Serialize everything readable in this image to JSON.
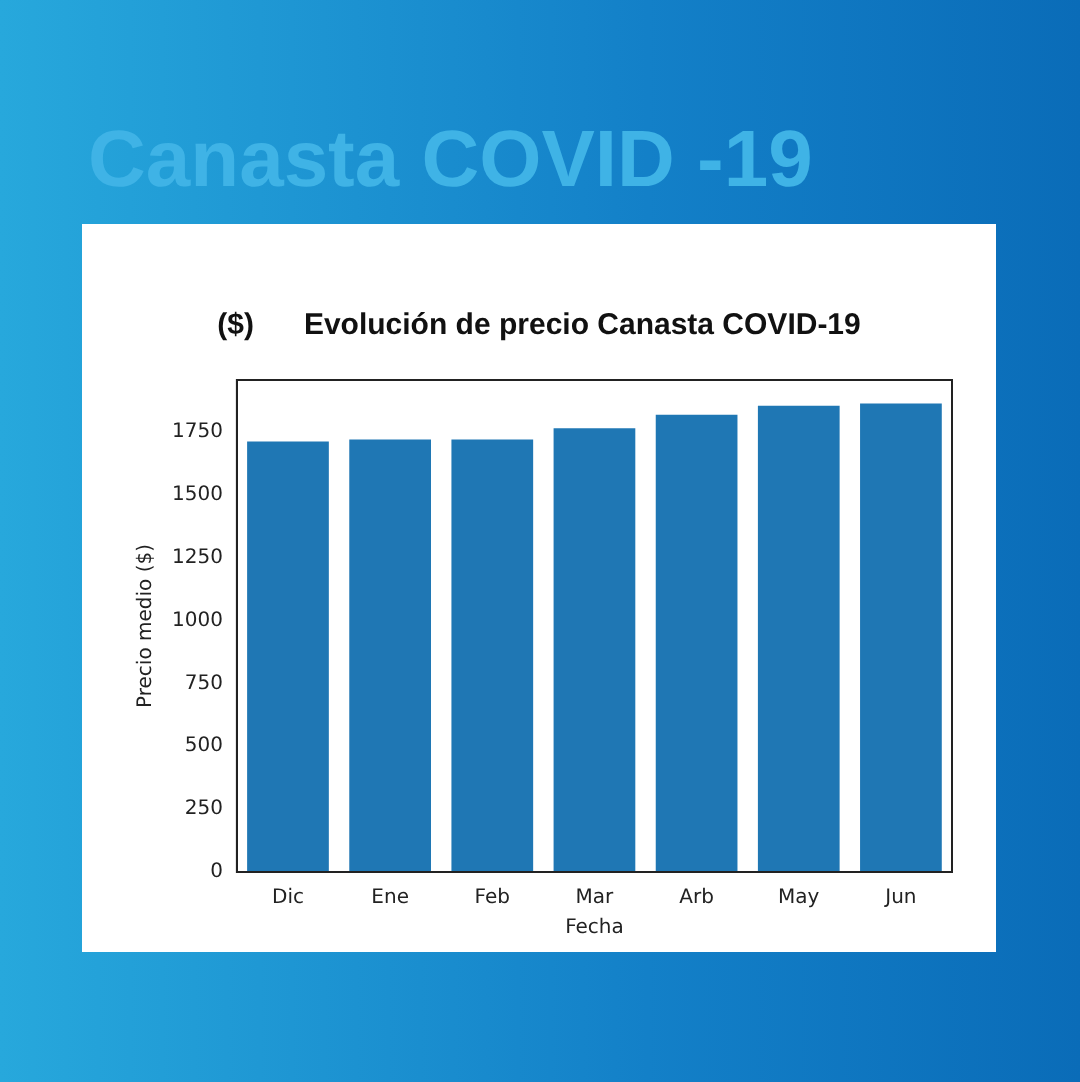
{
  "chart_data": {
    "type": "bar",
    "title": "($)      Evolución de precio Canasta COVID-19",
    "annotations": [
      "Canasta COVID -19"
    ],
    "xlabel": "Fecha",
    "ylabel": "Precio medio ($)",
    "categories": [
      "Dic",
      "Ene",
      "Feb",
      "Mar",
      "Arb",
      "May",
      "Jun"
    ],
    "values": [
      1712,
      1720,
      1720,
      1765,
      1819,
      1855,
      1864
    ],
    "color": "#1f77b4",
    "ylim": [
      0,
      1957
    ],
    "yticks": [
      0,
      250,
      500,
      750,
      1000,
      1250,
      1500,
      1750
    ],
    "grid": false,
    "legend": false
  }
}
